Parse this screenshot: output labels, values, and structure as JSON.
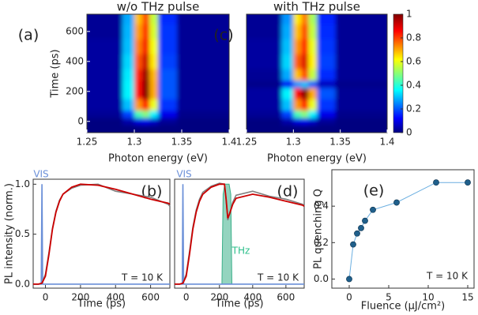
{
  "chart_data": [
    {
      "type": "heatmap",
      "label": "(a)",
      "title": "w/o THz pulse",
      "xlabel": "Photon energy (eV)",
      "ylabel": "Time (ps)",
      "x": [
        1.28,
        1.295,
        1.305,
        1.312,
        1.32,
        1.33,
        1.36
      ],
      "y": [
        -40,
        0,
        50,
        100,
        200,
        250,
        300,
        400,
        500,
        600,
        700
      ],
      "z": [
        [
          0,
          0,
          0,
          0,
          0,
          0,
          0
        ],
        [
          0,
          0.04,
          0.09,
          0.1,
          0.07,
          0.02,
          0
        ],
        [
          0.02,
          0.18,
          0.43,
          0.5,
          0.35,
          0.1,
          0.01
        ],
        [
          0.03,
          0.3,
          0.72,
          0.85,
          0.6,
          0.17,
          0.02
        ],
        [
          0.03,
          0.35,
          0.85,
          1,
          0.7,
          0.2,
          0.02
        ],
        [
          0.03,
          0.35,
          0.85,
          1,
          0.7,
          0.2,
          0.02
        ],
        [
          0.03,
          0.34,
          0.83,
          0.98,
          0.69,
          0.2,
          0.02
        ],
        [
          0.03,
          0.32,
          0.78,
          0.92,
          0.64,
          0.18,
          0.02
        ],
        [
          0.03,
          0.3,
          0.74,
          0.87,
          0.61,
          0.17,
          0.02
        ],
        [
          0.02,
          0.29,
          0.71,
          0.83,
          0.58,
          0.17,
          0.02
        ],
        [
          0.02,
          0.28,
          0.68,
          0.8,
          0.56,
          0.16,
          0.02
        ]
      ],
      "xlim": [
        1.25,
        1.4
      ],
      "xticks": [
        1.25,
        1.3,
        1.35,
        1.4
      ],
      "ylim": [
        -75,
        715
      ],
      "yticks": [
        0,
        200,
        400,
        600
      ]
    },
    {
      "type": "heatmap",
      "label": "(c)",
      "title": "with THz pulse",
      "xlabel": "Photon energy (eV)",
      "x": [
        1.28,
        1.295,
        1.305,
        1.312,
        1.32,
        1.33,
        1.36
      ],
      "y": [
        -40,
        0,
        50,
        100,
        200,
        250,
        300,
        400,
        500,
        600,
        700
      ],
      "z": [
        [
          0,
          0,
          0,
          0,
          0,
          0,
          0
        ],
        [
          0,
          0.04,
          0.09,
          0.1,
          0.07,
          0.02,
          0
        ],
        [
          0.02,
          0.18,
          0.43,
          0.5,
          0.35,
          0.1,
          0.01
        ],
        [
          0.03,
          0.3,
          0.72,
          0.85,
          0.6,
          0.17,
          0.02
        ],
        [
          0.03,
          0.35,
          0.85,
          1,
          0.7,
          0.2,
          0.02
        ],
        [
          0.01,
          0.11,
          0.26,
          0.3,
          0.21,
          0.06,
          0.01
        ],
        [
          0.02,
          0.28,
          0.68,
          0.8,
          0.56,
          0.16,
          0.02
        ],
        [
          0.03,
          0.32,
          0.77,
          0.9,
          0.63,
          0.18,
          0.02
        ],
        [
          0.03,
          0.3,
          0.72,
          0.85,
          0.6,
          0.17,
          0.02
        ],
        [
          0.02,
          0.28,
          0.68,
          0.8,
          0.56,
          0.16,
          0.02
        ],
        [
          0.02,
          0.26,
          0.64,
          0.75,
          0.53,
          0.15,
          0.02
        ]
      ],
      "xlim": [
        1.25,
        1.4
      ],
      "xticks": [
        1.25,
        1.3,
        1.35,
        1.4
      ],
      "ylim": [
        -75,
        715
      ],
      "colorbar": {
        "lim": [
          0,
          1
        ],
        "ticks": [
          0,
          0.2,
          0.4,
          0.6,
          0.8,
          1
        ]
      }
    },
    {
      "type": "line",
      "label": "(b)",
      "xlabel": "Time (ps)",
      "ylabel": "PL intensity (norm.)",
      "xlim": [
        -70,
        710
      ],
      "xticks": [
        0,
        200,
        400,
        600
      ],
      "ylim": [
        -0.04,
        1.05
      ],
      "yticks": [
        {
          "value": 0,
          "label": "0.0"
        },
        0.5,
        {
          "value": 1,
          "label": "1.0"
        }
      ],
      "series": [
        {
          "color": "#6a8fd8",
          "x": [
            -70,
            -24,
            -20,
            -16,
            710
          ],
          "values": [
            0,
            0,
            1,
            0,
            0
          ]
        },
        {
          "color": "#808080",
          "x": [
            -70,
            -40,
            -20,
            0,
            20,
            40,
            60,
            80,
            100,
            150,
            200,
            300,
            400,
            500,
            600,
            700,
            710
          ],
          "values": [
            0,
            0,
            0.01,
            0.1,
            0.32,
            0.56,
            0.73,
            0.84,
            0.9,
            0.96,
            0.99,
            1.0,
            0.93,
            0.9,
            0.87,
            0.8,
            0.78
          ]
        },
        {
          "color": "#cc0000",
          "x": [
            -70,
            -40,
            -20,
            0,
            20,
            40,
            60,
            80,
            100,
            150,
            200,
            300,
            400,
            500,
            600,
            700,
            710
          ],
          "values": [
            0,
            0,
            0.01,
            0.08,
            0.3,
            0.55,
            0.72,
            0.83,
            0.9,
            0.97,
            1,
            0.99,
            0.95,
            0.9,
            0.85,
            0.81,
            0.8
          ]
        }
      ],
      "annotations": [
        {
          "text": "VIS",
          "color": "#6a8fd8"
        },
        {
          "text": "T = 10 K",
          "color": "#222222"
        }
      ]
    },
    {
      "type": "line",
      "label": "(d)",
      "xlabel": "Time (ps)",
      "xlim": [
        -70,
        710
      ],
      "xticks": [
        0,
        200,
        400,
        600
      ],
      "ylim": [
        -0.04,
        1.05
      ],
      "series": [
        {
          "color": "#3cb08a",
          "area": true,
          "x": [
            215,
            222,
            232,
            245,
            258,
            268,
            275
          ],
          "values": [
            0,
            0.9,
            1,
            1,
            1,
            0.9,
            0
          ]
        },
        {
          "color": "#6a8fd8",
          "x": [
            -70,
            -24,
            -20,
            -16,
            710
          ],
          "values": [
            0,
            0,
            1,
            0,
            0
          ]
        },
        {
          "color": "#808080",
          "x": [
            -70,
            -40,
            -20,
            0,
            20,
            40,
            60,
            80,
            100,
            150,
            200,
            230,
            240,
            250,
            260,
            280,
            300,
            400,
            500,
            600,
            700,
            710
          ],
          "values": [
            0,
            0,
            0.01,
            0.1,
            0.33,
            0.57,
            0.74,
            0.85,
            0.92,
            0.98,
            1.01,
            1.0,
            0.85,
            0.64,
            0.7,
            0.82,
            0.89,
            0.93,
            0.88,
            0.85,
            0.8,
            0.78
          ]
        },
        {
          "color": "#cc0000",
          "x": [
            -70,
            -40,
            -20,
            0,
            20,
            40,
            60,
            80,
            100,
            150,
            200,
            230,
            240,
            250,
            260,
            280,
            300,
            400,
            500,
            600,
            700,
            710
          ],
          "values": [
            0,
            0,
            0.01,
            0.08,
            0.3,
            0.55,
            0.72,
            0.83,
            0.9,
            0.97,
            1,
            1,
            0.85,
            0.66,
            0.7,
            0.8,
            0.86,
            0.9,
            0.87,
            0.83,
            0.79,
            0.78
          ]
        }
      ],
      "annotations": [
        {
          "text": "VIS",
          "color": "#6a8fd8"
        },
        {
          "text": "THz",
          "color": "#2bbf8a"
        },
        {
          "text": "T = 10 K",
          "color": "#222222"
        }
      ]
    },
    {
      "type": "scatter",
      "label": "(e)",
      "xlabel": "Fluence (μJ/cm²)",
      "ylabel": "PL quenching Q",
      "x": [
        0,
        0.5,
        1,
        1.5,
        2,
        3,
        6,
        11,
        15
      ],
      "values": [
        0,
        0.19,
        0.25,
        0.28,
        0.32,
        0.38,
        0.42,
        0.53,
        0.53
      ],
      "color": "#1f5f8b",
      "line_color": "#6aaee0",
      "xlim": [
        -2.2,
        15.8
      ],
      "xticks": [
        0,
        5,
        10,
        15
      ],
      "ylim": [
        -0.05,
        0.6
      ],
      "yticks": [
        {
          "value": 0,
          "label": "0.0"
        },
        0.2,
        0.4
      ],
      "annotations": [
        {
          "text": "T = 10 K",
          "color": "#222222"
        }
      ]
    }
  ]
}
